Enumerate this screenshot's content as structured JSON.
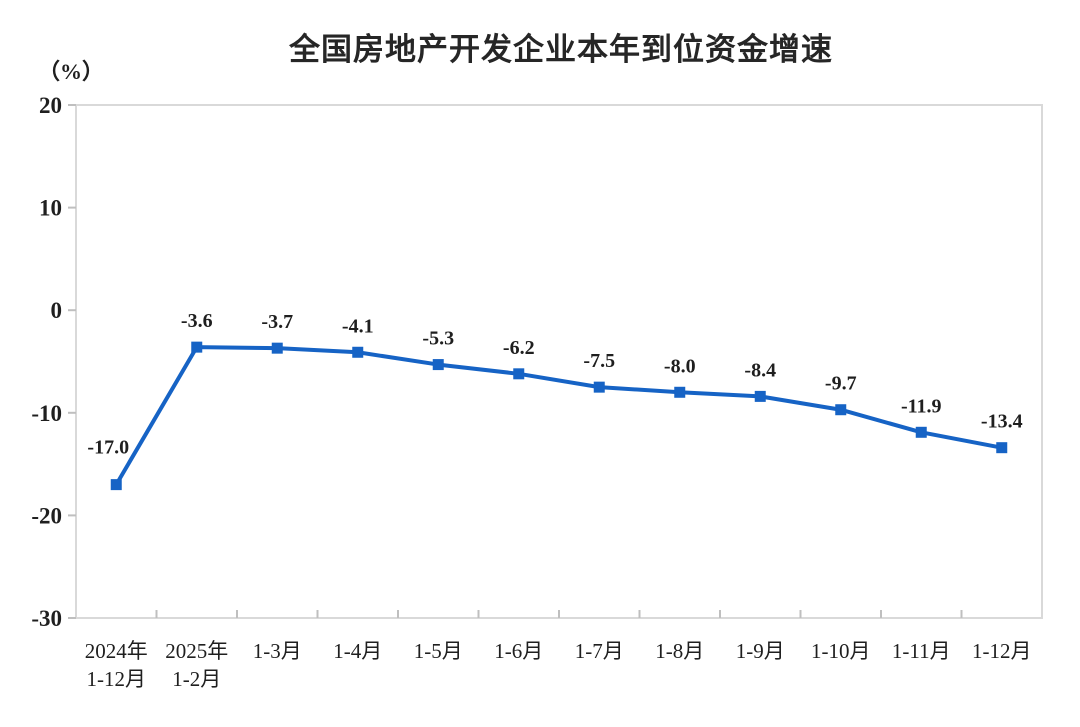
{
  "chart_data": {
    "type": "line",
    "title": "全国房地产开发企业本年到位资金增速",
    "unit": "（%）",
    "categories": [
      "2024年\n1-12月",
      "2025年\n1-2月",
      "1-3月",
      "1-4月",
      "1-5月",
      "1-6月",
      "1-7月",
      "1-8月",
      "1-9月",
      "1-10月",
      "1-11月",
      "1-12月"
    ],
    "values": [
      -17.0,
      -3.6,
      -3.7,
      -4.1,
      -5.3,
      -6.2,
      -7.5,
      -8.0,
      -8.4,
      -9.7,
      -11.9,
      -13.4
    ],
    "value_labels": [
      "-17.0",
      "-3.6",
      "-3.7",
      "-4.1",
      "-5.3",
      "-6.2",
      "-7.5",
      "-8.0",
      "-8.4",
      "-9.7",
      "-11.9",
      "-13.4"
    ],
    "yticks": [
      20,
      10,
      0,
      -10,
      -20,
      -30
    ],
    "ylim": [
      -30,
      20
    ],
    "xlabel": "",
    "ylabel": "（%）",
    "grid": false,
    "legend": null,
    "series_color": "#1663c5",
    "frame_color": "#d9d9d9",
    "tick_color": "#bfbfbf",
    "text_color": "#1f1f1f"
  }
}
